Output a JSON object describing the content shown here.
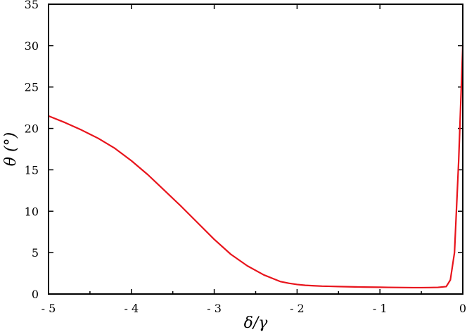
{
  "chart_data": {
    "type": "line",
    "title": "",
    "xlabel": "δ/γ",
    "ylabel": "θ (°)",
    "xlim": [
      -5,
      0
    ],
    "ylim": [
      0,
      35
    ],
    "xticks": [
      -5,
      -4,
      -3,
      -2,
      -1,
      0
    ],
    "xtick_labels": [
      "- 5",
      "- 4",
      "- 3",
      "- 2",
      "- 1",
      "0"
    ],
    "yticks": [
      0,
      5,
      10,
      15,
      20,
      25,
      30,
      35
    ],
    "ytick_labels": [
      "0",
      "5",
      "10",
      "15",
      "20",
      "25",
      "30",
      "35"
    ],
    "grid": false,
    "legend": "none",
    "series": [
      {
        "color": "#e8141c",
        "x": [
          -5.0,
          -4.8,
          -4.6,
          -4.4,
          -4.2,
          -4.0,
          -3.8,
          -3.6,
          -3.4,
          -3.2,
          -3.0,
          -2.8,
          -2.6,
          -2.4,
          -2.2,
          -2.1,
          -2.0,
          -1.9,
          -1.8,
          -1.7,
          -1.6,
          -1.5,
          -1.4,
          -1.3,
          -1.2,
          -1.1,
          -1.0,
          -0.9,
          -0.8,
          -0.7,
          -0.6,
          -0.5,
          -0.4,
          -0.3,
          -0.2,
          -0.15,
          -0.1,
          -0.05,
          0.0
        ],
        "y": [
          21.5,
          20.7,
          19.8,
          18.8,
          17.6,
          16.1,
          14.4,
          12.5,
          10.6,
          8.6,
          6.6,
          4.8,
          3.4,
          2.3,
          1.5,
          1.3,
          1.15,
          1.05,
          1.0,
          0.95,
          0.93,
          0.9,
          0.88,
          0.86,
          0.84,
          0.83,
          0.82,
          0.8,
          0.79,
          0.78,
          0.77,
          0.77,
          0.78,
          0.8,
          0.9,
          1.7,
          5.0,
          16.0,
          30.0
        ]
      }
    ]
  }
}
